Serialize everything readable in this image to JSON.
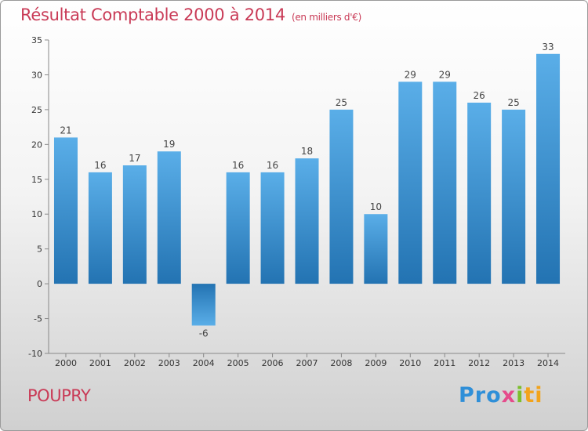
{
  "header": {
    "title": "Résultat Comptable 2000 à 2014",
    "subtitle": "(en milliers d'€)"
  },
  "footer": {
    "commune": "POUPRY",
    "logo_parts": [
      "Pro",
      "x",
      "i",
      "ti"
    ]
  },
  "colors": {
    "accent": "#c93a56",
    "bar_light": "#5aaae6",
    "bar_dark": "#2677b5"
  },
  "chart_data": {
    "type": "bar",
    "categories": [
      "2000",
      "2001",
      "2002",
      "2003",
      "2004",
      "2005",
      "2006",
      "2007",
      "2008",
      "2009",
      "2010",
      "2011",
      "2012",
      "2013",
      "2014"
    ],
    "values": [
      21,
      16,
      17,
      19,
      -6,
      16,
      16,
      18,
      25,
      10,
      29,
      29,
      26,
      25,
      33
    ],
    "value_labels": [
      "21",
      "16",
      "17",
      "19",
      "-6",
      "16",
      "16",
      "18",
      "25",
      "10",
      "29",
      "29",
      "26",
      "25",
      "33"
    ],
    "title": "Résultat Comptable 2000 à 2014",
    "xlabel": "",
    "ylabel": "",
    "ylim": [
      -10,
      35
    ],
    "yticks": [
      "35",
      "30",
      "25",
      "20",
      "15",
      "10",
      "5",
      "0",
      "-5",
      "-10"
    ],
    "grid": false
  }
}
